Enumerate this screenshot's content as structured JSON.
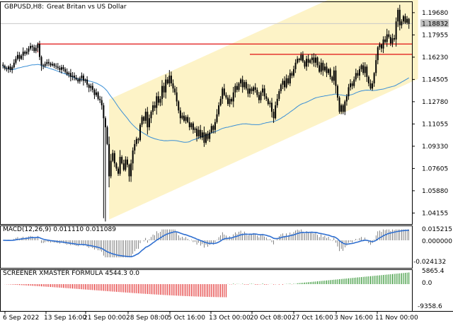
{
  "header": {
    "symbol": "GBPUSD,H8:",
    "description": "Great Britan vs US Dollar",
    "current_price": "1.18832"
  },
  "colors": {
    "candle": "#000000",
    "ma": "#3a8fd6",
    "channel": "#fdf3c7",
    "level_line": "#e01010",
    "macd_signal": "#2f6fd0",
    "osc_neg": "#e02020",
    "osc_pos": "#1f8a1f",
    "grid": "#c8c8c8"
  },
  "macd_panel": {
    "title": "MACD(12,26,9) 0.011110 0.011089",
    "ticks": [
      "0.015215",
      "0.000000",
      "-0.024132"
    ]
  },
  "screener_panel": {
    "title": "SCREENER XMASTER FORMULA 4544.3 0.0",
    "ticks": [
      "5865.4",
      "0.0",
      "-9358.6"
    ]
  },
  "chart_data": {
    "type": "candlestick",
    "title": "GBPUSD,H8: Great Britan vs US Dollar",
    "y_ticks": [
      "1.19680",
      "1.17955",
      "1.16230",
      "1.14505",
      "1.12780",
      "1.11055",
      "1.09330",
      "1.07605",
      "1.05880",
      "1.04155"
    ],
    "x_ticks": [
      "6 Sep 2022",
      "13 Sep 16:00",
      "21 Sep 00:00",
      "28 Sep 08:00",
      "5 Oct 16:00",
      "13 Oct 00:00",
      "20 Oct 08:00",
      "27 Oct 16:00",
      "3 Nov 16:00",
      "11 Nov 00:00"
    ],
    "ylim": [
      1.033,
      1.2055
    ],
    "last_price": 1.18832,
    "horizontal_levels": [
      1.1725,
      1.1645
    ],
    "channel": {
      "start_bar": 58,
      "end_bar": 227,
      "lower_start": 1.0365,
      "lower_end": 1.1455,
      "upper_start": 1.1295,
      "upper_end": 1.2385
    },
    "close": [
      1.1555,
      1.1535,
      1.153,
      1.155,
      1.1525,
      1.1545,
      1.158,
      1.161,
      1.164,
      1.161,
      1.1635,
      1.1665,
      1.165,
      1.1665,
      1.169,
      1.171,
      1.17,
      1.167,
      1.1695,
      1.1725,
      1.1625,
      1.156,
      1.1555,
      1.157,
      1.1585,
      1.1575,
      1.156,
      1.157,
      1.1555,
      1.155,
      1.154,
      1.1525,
      1.1545,
      1.153,
      1.151,
      1.149,
      1.15,
      1.147,
      1.148,
      1.1465,
      1.145,
      1.1435,
      1.146,
      1.148,
      1.144,
      1.145,
      1.141,
      1.1385,
      1.14,
      1.137,
      1.133,
      1.135,
      1.13,
      1.129,
      1.125,
      1.115,
      1.108,
      1.095,
      1.07,
      1.082,
      1.088,
      1.08,
      1.076,
      1.072,
      1.085,
      1.08,
      1.075,
      1.083,
      1.079,
      1.07,
      1.08,
      1.09,
      1.095,
      1.099,
      1.098,
      1.11,
      1.116,
      1.113,
      1.12,
      1.108,
      1.115,
      1.12,
      1.125,
      1.123,
      1.132,
      1.127,
      1.13,
      1.14,
      1.135,
      1.145,
      1.142,
      1.148,
      1.142,
      1.138,
      1.135,
      1.128,
      1.121,
      1.115,
      1.117,
      1.113,
      1.116,
      1.112,
      1.108,
      1.111,
      1.106,
      1.107,
      1.101,
      1.106,
      1.1,
      1.104,
      1.096,
      1.103,
      1.099,
      1.104,
      1.109,
      1.106,
      1.112,
      1.118,
      1.125,
      1.13,
      1.138,
      1.133,
      1.131,
      1.126,
      1.13,
      1.128,
      1.135,
      1.14,
      1.137,
      1.142,
      1.145,
      1.139,
      1.143,
      1.138,
      1.134,
      1.138,
      1.136,
      1.139,
      1.137,
      1.133,
      1.129,
      1.135,
      1.138,
      1.132,
      1.13,
      1.126,
      1.127,
      1.12,
      1.115,
      1.125,
      1.13,
      1.136,
      1.141,
      1.144,
      1.139,
      1.146,
      1.142,
      1.15,
      1.148,
      1.153,
      1.158,
      1.161,
      1.16,
      1.164,
      1.159,
      1.155,
      1.161,
      1.158,
      1.16,
      1.162,
      1.158,
      1.162,
      1.156,
      1.151,
      1.158,
      1.152,
      1.155,
      1.15,
      1.153,
      1.147,
      1.144,
      1.152,
      1.14,
      1.131,
      1.12,
      1.125,
      1.12,
      1.128,
      1.132,
      1.139,
      1.142,
      1.14,
      1.145,
      1.15,
      1.148,
      1.153,
      1.156,
      1.15,
      1.155,
      1.147,
      1.142,
      1.138,
      1.142,
      1.15,
      1.16,
      1.17,
      1.172,
      1.169,
      1.176,
      1.174,
      1.18,
      1.178,
      1.173,
      1.177,
      1.176,
      1.19,
      1.199,
      1.187,
      1.19,
      1.194,
      1.189,
      1.192,
      1.188
    ]
  }
}
